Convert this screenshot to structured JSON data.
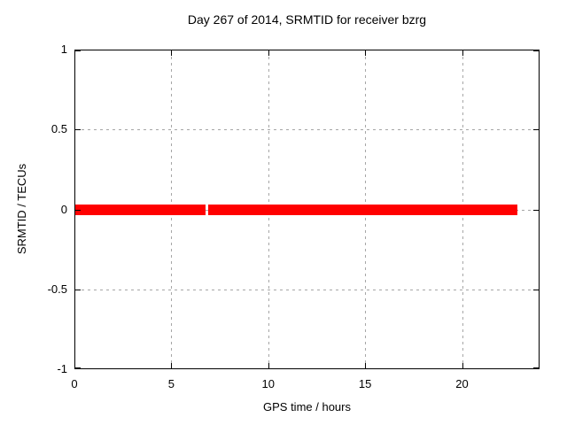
{
  "chart_data": {
    "type": "line",
    "title": "Day 267 of 2014, SRMTID for receiver bzrg",
    "xlabel": "GPS time / hours",
    "ylabel": "SRMTID / TECUs",
    "xlim": [
      0,
      24
    ],
    "ylim": [
      -1,
      1
    ],
    "xticks": [
      0,
      5,
      10,
      15,
      20
    ],
    "yticks": [
      -1,
      -0.5,
      0,
      0.5,
      1
    ],
    "grid": true,
    "grid_color": "#a6a6a6",
    "axis_color": "#000000",
    "background_color": "#ffffff",
    "legend": "none",
    "series": [
      {
        "name": "SRMTID",
        "color": "#ff0000",
        "style": "thick-horizontal-band",
        "y": 0,
        "segments": [
          {
            "x_start": 0,
            "x_end": 6.74
          },
          {
            "x_start": 6.84,
            "x_end": 22.81
          }
        ]
      }
    ]
  }
}
